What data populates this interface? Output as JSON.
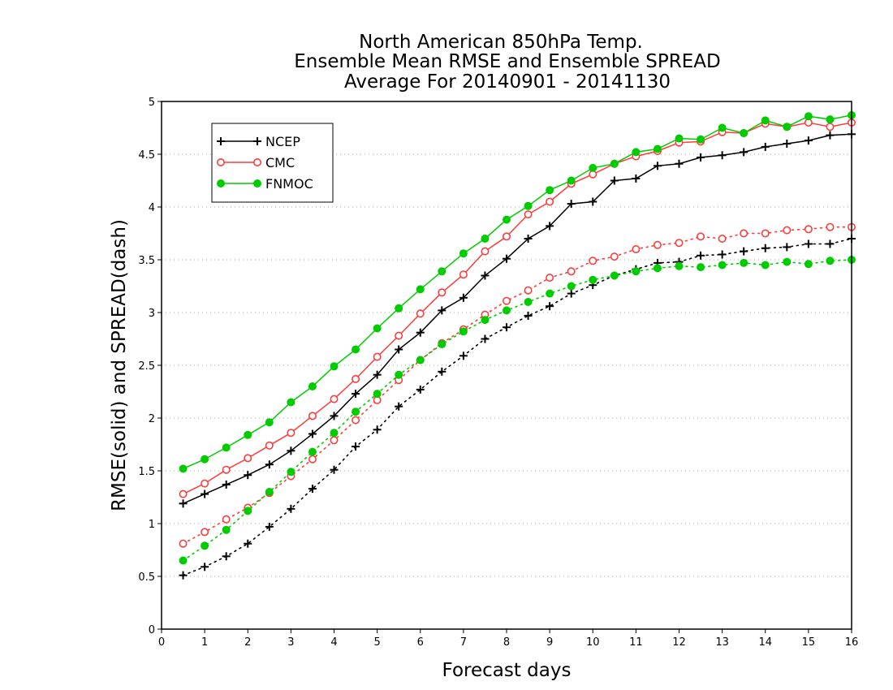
{
  "chart_data": {
    "type": "line",
    "title": [
      "North American 850hPa Temp.",
      "Ensemble Mean RMSE and Ensemble SPREAD",
      "Average For 20140901 - 20141130"
    ],
    "xlabel": "Forecast days",
    "ylabel": "RMSE(solid) and SPREAD(dash)",
    "xlim": [
      0,
      16
    ],
    "ylim": [
      0,
      5
    ],
    "xticks": [
      "0",
      "1",
      "2",
      "3",
      "4",
      "5",
      "6",
      "7",
      "8",
      "9",
      "10",
      "11",
      "12",
      "13",
      "14",
      "15",
      "16"
    ],
    "yticks": [
      "0",
      "0.5",
      "1",
      "1.5",
      "2",
      "2.5",
      "3",
      "3.5",
      "4",
      "4.5",
      "5"
    ],
    "grid": "horizontal-dotted",
    "legend_position": "top-left",
    "x": [
      0.5,
      1,
      1.5,
      2,
      2.5,
      3,
      3.5,
      4,
      4.5,
      5,
      5.5,
      6,
      6.5,
      7,
      7.5,
      8,
      8.5,
      9,
      9.5,
      10,
      10.5,
      11,
      11.5,
      12,
      12.5,
      13,
      13.5,
      14,
      14.5,
      15,
      15.5,
      16
    ],
    "series": [
      {
        "name": "NCEP",
        "color": "#000000",
        "marker": "plus",
        "rmse": [
          1.19,
          1.28,
          1.37,
          1.46,
          1.56,
          1.69,
          1.85,
          2.02,
          2.23,
          2.41,
          2.65,
          2.81,
          3.02,
          3.14,
          3.35,
          3.51,
          3.7,
          3.82,
          4.03,
          4.05,
          4.25,
          4.27,
          4.39,
          4.41,
          4.47,
          4.49,
          4.52,
          4.57,
          4.6,
          4.63,
          4.68,
          4.69
        ],
        "spread": [
          0.51,
          0.59,
          0.69,
          0.81,
          0.97,
          1.14,
          1.33,
          1.51,
          1.73,
          1.89,
          2.11,
          2.27,
          2.44,
          2.59,
          2.75,
          2.86,
          2.97,
          3.06,
          3.18,
          3.26,
          3.35,
          3.41,
          3.47,
          3.48,
          3.54,
          3.55,
          3.58,
          3.61,
          3.62,
          3.65,
          3.65,
          3.7
        ]
      },
      {
        "name": "CMC",
        "color": "#ff3b3b",
        "marker": "open-circle",
        "rmse": [
          1.28,
          1.38,
          1.51,
          1.62,
          1.74,
          1.86,
          2.02,
          2.18,
          2.37,
          2.58,
          2.78,
          2.99,
          3.19,
          3.36,
          3.58,
          3.72,
          3.93,
          4.05,
          4.22,
          4.31,
          4.41,
          4.48,
          4.53,
          4.61,
          4.62,
          4.71,
          4.7,
          4.79,
          4.76,
          4.8,
          4.76,
          4.8
        ],
        "spread": [
          0.81,
          0.92,
          1.04,
          1.15,
          1.29,
          1.45,
          1.61,
          1.79,
          1.98,
          2.17,
          2.36,
          2.55,
          2.71,
          2.84,
          2.98,
          3.11,
          3.21,
          3.33,
          3.39,
          3.49,
          3.53,
          3.6,
          3.64,
          3.66,
          3.72,
          3.7,
          3.75,
          3.75,
          3.78,
          3.79,
          3.81,
          3.81
        ]
      },
      {
        "name": "FNMOC",
        "color": "#00cc00",
        "marker": "filled-circle",
        "rmse": [
          1.52,
          1.61,
          1.72,
          1.84,
          1.96,
          2.15,
          2.3,
          2.49,
          2.65,
          2.85,
          3.04,
          3.22,
          3.39,
          3.56,
          3.7,
          3.88,
          4.01,
          4.16,
          4.25,
          4.37,
          4.41,
          4.52,
          4.55,
          4.65,
          4.64,
          4.75,
          4.7,
          4.82,
          4.76,
          4.86,
          4.83,
          4.87
        ],
        "spread": [
          0.65,
          0.79,
          0.94,
          1.12,
          1.3,
          1.49,
          1.68,
          1.86,
          2.06,
          2.23,
          2.41,
          2.55,
          2.7,
          2.82,
          2.93,
          3.02,
          3.1,
          3.18,
          3.25,
          3.31,
          3.35,
          3.39,
          3.42,
          3.44,
          3.43,
          3.45,
          3.47,
          3.45,
          3.48,
          3.46,
          3.49,
          3.5
        ]
      }
    ]
  }
}
